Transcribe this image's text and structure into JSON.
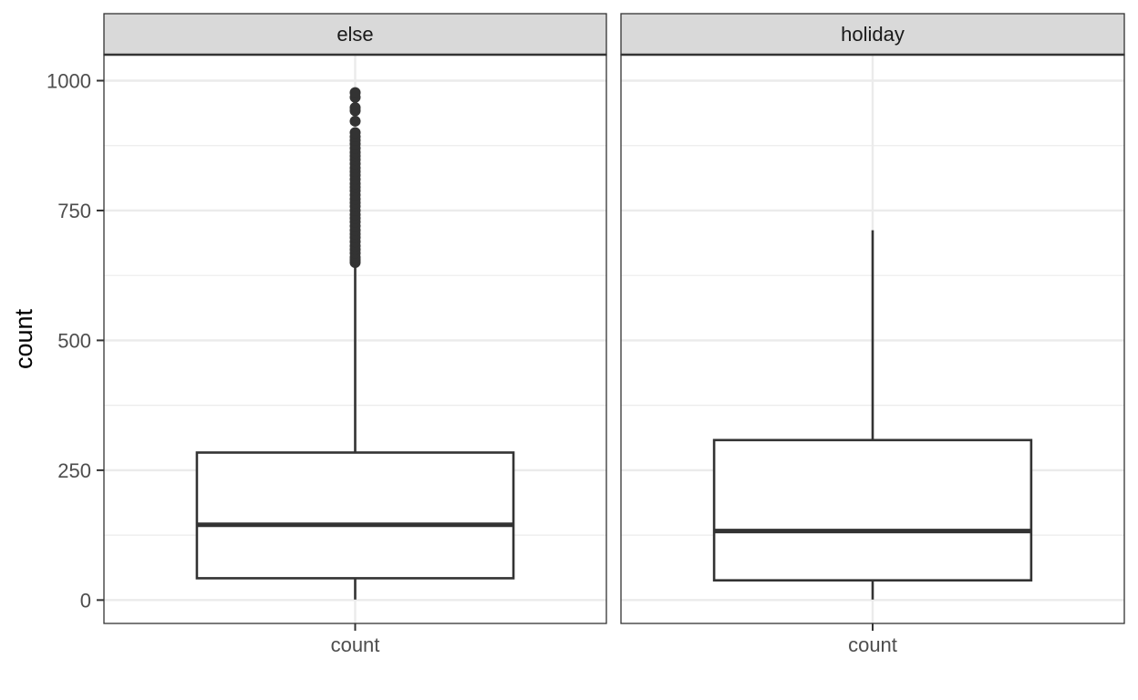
{
  "chart_data": {
    "type": "boxplot",
    "ylabel": "count",
    "ylim": [
      -45,
      1050
    ],
    "y_ticks": [
      0,
      250,
      500,
      750,
      1000
    ],
    "y_tick_labels": [
      "0",
      "250",
      "500",
      "750",
      "1000"
    ],
    "y_minor_ticks": [
      125,
      375,
      625,
      875
    ],
    "x_tick_label": "count",
    "grid": true,
    "colors": {
      "line": "#333333",
      "grid": "#ebebeb",
      "strip_fill": "#d9d9d9",
      "background": "#ffffff"
    },
    "facets": [
      {
        "label": "else",
        "whisker_low": 1,
        "q1": 42,
        "median": 145,
        "q3": 284,
        "whisker_high": 646,
        "outliers": [
          650,
          655,
          660,
          668,
          675,
          682,
          690,
          698,
          705,
          712,
          720,
          728,
          735,
          742,
          750,
          758,
          765,
          772,
          780,
          788,
          795,
          802,
          810,
          818,
          825,
          832,
          840,
          848,
          855,
          862,
          870,
          878,
          885,
          892,
          900,
          922,
          942,
          948,
          968,
          977
        ]
      },
      {
        "label": "holiday",
        "whisker_low": 1,
        "q1": 38,
        "median": 133,
        "q3": 308,
        "whisker_high": 712,
        "outliers": []
      }
    ]
  }
}
